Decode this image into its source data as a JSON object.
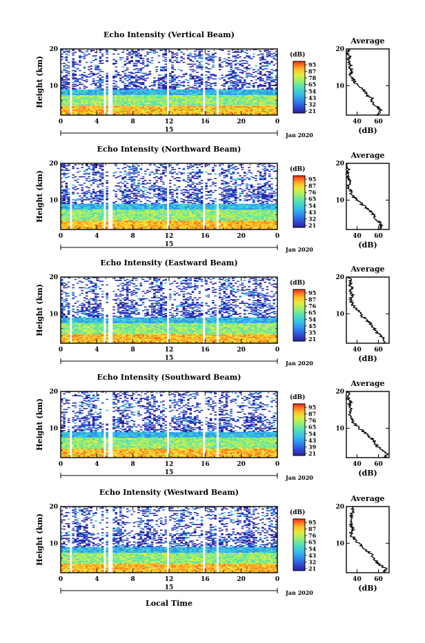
{
  "figure": {
    "xlabel": "Local Time",
    "date_label": "Jan 2020",
    "day_label": "15"
  },
  "chart_data": [
    {
      "type": "heatmap",
      "title": "Echo Intensity (Vertical Beam)",
      "ylabel": "Height (km)",
      "xlim": [
        0,
        24
      ],
      "ylim": [
        2,
        20
      ],
      "xticks": [
        "0",
        "4",
        "8",
        "12",
        "16",
        "20",
        "0"
      ],
      "yticks": [
        "10",
        "20"
      ],
      "colorbar": {
        "unit": "(dB)",
        "ticks": [
          "95",
          "87",
          "78",
          "65",
          "54",
          "43",
          "32",
          "21"
        ]
      },
      "average": {
        "title": "Average",
        "xlabel": "(dB)",
        "xticks": [
          "40",
          "60"
        ],
        "yticks": [
          "10",
          "20"
        ],
        "profile": [
          [
            58,
            2
          ],
          [
            62,
            3
          ],
          [
            60,
            4
          ],
          [
            56,
            5
          ],
          [
            54,
            6
          ],
          [
            55,
            6.5
          ],
          [
            50,
            7
          ],
          [
            48,
            8
          ],
          [
            46,
            9
          ],
          [
            42,
            10
          ],
          [
            38,
            11
          ],
          [
            36,
            12
          ],
          [
            34,
            13
          ],
          [
            36,
            14
          ],
          [
            33,
            15
          ],
          [
            34,
            16
          ],
          [
            32,
            17
          ],
          [
            33,
            18
          ],
          [
            31,
            19
          ],
          [
            32,
            20
          ]
        ]
      }
    },
    {
      "type": "heatmap",
      "title": "Echo Intensity (Northward Beam)",
      "ylabel": "Height (km)",
      "xlim": [
        0,
        24
      ],
      "ylim": [
        2,
        20
      ],
      "xticks": [
        "0",
        "4",
        "8",
        "12",
        "16",
        "20",
        "0"
      ],
      "yticks": [
        "10",
        "20"
      ],
      "colorbar": {
        "unit": "(dB)",
        "ticks": [
          "95",
          "87",
          "76",
          "65",
          "54",
          "43",
          "32",
          "21"
        ]
      },
      "average": {
        "title": "Average",
        "xlabel": "(dB)",
        "xticks": [
          "40",
          "60"
        ],
        "yticks": [
          "10",
          "20"
        ],
        "profile": [
          [
            60,
            2
          ],
          [
            63,
            3
          ],
          [
            61,
            4
          ],
          [
            57,
            5
          ],
          [
            55,
            6
          ],
          [
            53,
            7
          ],
          [
            48,
            8
          ],
          [
            44,
            9
          ],
          [
            40,
            10
          ],
          [
            36,
            11
          ],
          [
            34,
            12
          ],
          [
            33,
            13
          ],
          [
            32,
            14
          ],
          [
            33,
            15
          ],
          [
            32,
            16
          ],
          [
            31,
            17
          ],
          [
            32,
            18
          ],
          [
            31,
            19
          ],
          [
            32,
            20
          ]
        ]
      }
    },
    {
      "type": "heatmap",
      "title": "Echo Intensity (Eastward Beam)",
      "ylabel": "Height (km)",
      "xlim": [
        0,
        24
      ],
      "ylim": [
        2,
        20
      ],
      "xticks": [
        "0",
        "4",
        "8",
        "12",
        "16",
        "20",
        "0"
      ],
      "yticks": [
        "10",
        "20"
      ],
      "colorbar": {
        "unit": "(dB)",
        "ticks": [
          "95",
          "87",
          "76",
          "65",
          "54",
          "45",
          "35",
          "21"
        ]
      },
      "average": {
        "title": "Average",
        "xlabel": "(dB)",
        "xticks": [
          "40",
          "60"
        ],
        "yticks": [
          "10",
          "20"
        ],
        "profile": [
          [
            64,
            2
          ],
          [
            66,
            3
          ],
          [
            62,
            4
          ],
          [
            58,
            5
          ],
          [
            56,
            6
          ],
          [
            54,
            7
          ],
          [
            50,
            8
          ],
          [
            46,
            9
          ],
          [
            43,
            10
          ],
          [
            40,
            11
          ],
          [
            37,
            12
          ],
          [
            35,
            13
          ],
          [
            34,
            14
          ],
          [
            36,
            15
          ],
          [
            34,
            16
          ],
          [
            35,
            17
          ],
          [
            33,
            18
          ],
          [
            34,
            19
          ],
          [
            33,
            20
          ]
        ]
      }
    },
    {
      "type": "heatmap",
      "title": "Echo Intensity (Southward Beam)",
      "ylabel": "Height (km)",
      "xlim": [
        0,
        24
      ],
      "ylim": [
        2,
        20
      ],
      "xticks": [
        "0",
        "4",
        "8",
        "12",
        "16",
        "20",
        "0"
      ],
      "yticks": [
        "10",
        "20"
      ],
      "colorbar": {
        "unit": "(dB)",
        "ticks": [
          "95",
          "87",
          "76",
          "65",
          "54",
          "43",
          "39",
          "21"
        ]
      },
      "average": {
        "title": "Average",
        "xlabel": "(dB)",
        "xticks": [
          "40",
          "60"
        ],
        "yticks": [
          "10",
          "20"
        ],
        "profile": [
          [
            66,
            2
          ],
          [
            68,
            3
          ],
          [
            63,
            4
          ],
          [
            59,
            5
          ],
          [
            57,
            6
          ],
          [
            55,
            7
          ],
          [
            50,
            8
          ],
          [
            46,
            9
          ],
          [
            42,
            10
          ],
          [
            38,
            11
          ],
          [
            36,
            12
          ],
          [
            34,
            13
          ],
          [
            33,
            14
          ],
          [
            34,
            15
          ],
          [
            33,
            16
          ],
          [
            34,
            17
          ],
          [
            32,
            18
          ],
          [
            33,
            19
          ],
          [
            32,
            20
          ]
        ]
      }
    },
    {
      "type": "heatmap",
      "title": "Echo Intensity (Westward Beam)",
      "ylabel": "Height (km)",
      "xlim": [
        0,
        24
      ],
      "ylim": [
        2,
        20
      ],
      "xticks": [
        "0",
        "4",
        "8",
        "12",
        "16",
        "20",
        "0"
      ],
      "yticks": [
        "10",
        "20"
      ],
      "colorbar": {
        "unit": "(dB)",
        "ticks": [
          "95",
          "87",
          "76",
          "65",
          "54",
          "43",
          "32",
          "21"
        ]
      },
      "average": {
        "title": "Average",
        "xlabel": "(dB)",
        "xticks": [
          "40",
          "60"
        ],
        "yticks": [
          "10",
          "20"
        ],
        "profile": [
          [
            64,
            2
          ],
          [
            67,
            3
          ],
          [
            62,
            4
          ],
          [
            58,
            5
          ],
          [
            56,
            6
          ],
          [
            54,
            7
          ],
          [
            49,
            8
          ],
          [
            45,
            9
          ],
          [
            41,
            10
          ],
          [
            38,
            11
          ],
          [
            35,
            12
          ],
          [
            34,
            13
          ],
          [
            36,
            14
          ],
          [
            34,
            15
          ],
          [
            35,
            16
          ],
          [
            34,
            17
          ],
          [
            35,
            18
          ],
          [
            36,
            19
          ],
          [
            35,
            20
          ]
        ]
      }
    }
  ],
  "colormap": [
    "#2b1f9e",
    "#2d4fd6",
    "#2f8ef0",
    "#34c3e6",
    "#52e0b8",
    "#9bef6e",
    "#e3ec3d",
    "#ffc02a",
    "#ff7a1f",
    "#ef2a17"
  ]
}
